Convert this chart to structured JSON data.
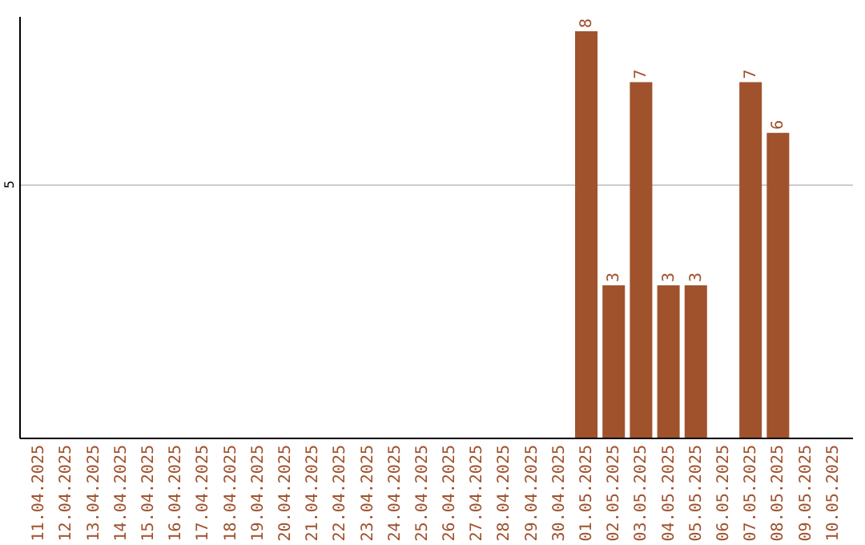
{
  "chart_data": {
    "type": "bar",
    "categories": [
      "11.04.2025",
      "12.04.2025",
      "13.04.2025",
      "14.04.2025",
      "15.04.2025",
      "16.04.2025",
      "17.04.2025",
      "18.04.2025",
      "19.04.2025",
      "20.04.2025",
      "21.04.2025",
      "22.04.2025",
      "23.04.2025",
      "24.04.2025",
      "25.04.2025",
      "26.04.2025",
      "27.04.2025",
      "28.04.2025",
      "29.04.2025",
      "30.04.2025",
      "01.05.2025",
      "02.05.2025",
      "03.05.2025",
      "04.05.2025",
      "05.05.2025",
      "06.05.2025",
      "07.05.2025",
      "08.05.2025",
      "09.05.2025",
      "10.05.2025"
    ],
    "values": [
      null,
      null,
      null,
      null,
      null,
      null,
      null,
      null,
      null,
      null,
      null,
      null,
      null,
      null,
      null,
      null,
      null,
      null,
      null,
      null,
      8,
      3,
      7,
      3,
      3,
      null,
      7,
      6,
      null,
      null
    ],
    "color": "#a0522d",
    "ylim": [
      0,
      8.3
    ],
    "yticks": [
      5
    ],
    "grid": "y",
    "data_labels": true
  }
}
